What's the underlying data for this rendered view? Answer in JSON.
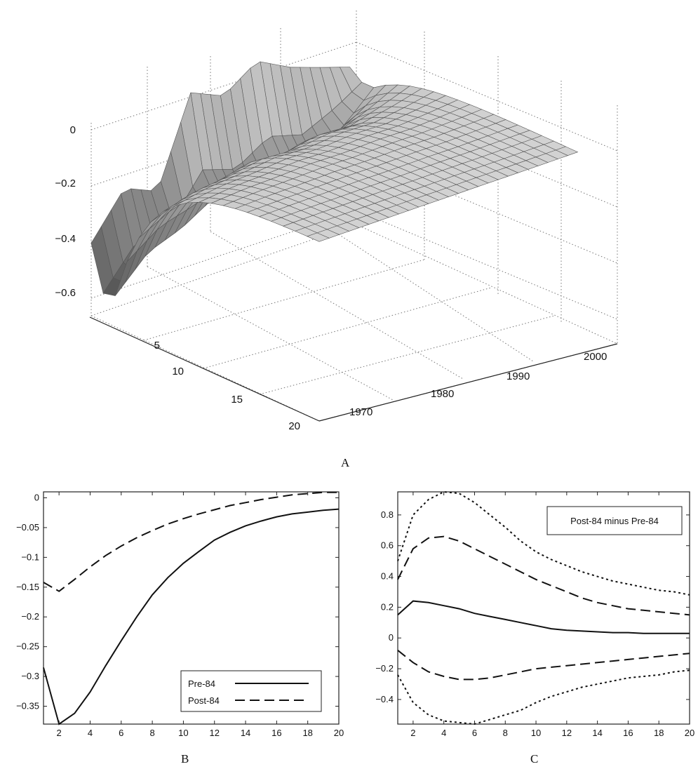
{
  "panels": {
    "a_label": "A",
    "b_label": "B",
    "c_label": "C"
  },
  "chart_data": [
    {
      "panel": "A",
      "type": "surface",
      "z_ticks": [
        "0",
        "−0.2",
        "−0.4",
        "−0.6"
      ],
      "horizon_ticks": [
        "5",
        "10",
        "15",
        "20"
      ],
      "year_ticks": [
        "1970",
        "1980",
        "1990",
        "2000"
      ],
      "zlim": [
        -0.7,
        0.1
      ],
      "horizon_range": [
        1,
        20
      ],
      "year_range": [
        1965,
        2005
      ],
      "grid": true,
      "ridge_profile": {
        "years": [
          1965,
          1970,
          1975,
          1980,
          1985,
          1990,
          1995,
          2000,
          2004
        ],
        "h1_value": [
          -0.45,
          -0.3,
          -0.35,
          -0.05,
          -0.1,
          -0.02,
          -0.08,
          -0.12,
          -0.15
        ],
        "trough_value": [
          -0.68,
          -0.55,
          -0.5,
          -0.42,
          -0.45,
          -0.38,
          -0.4,
          -0.3,
          -0.2
        ]
      },
      "colors": {
        "surface_light": "#d8d8d8",
        "surface_dark": "#3a3a3a",
        "edge": "#555555"
      }
    },
    {
      "panel": "B",
      "type": "line",
      "x": [
        1,
        2,
        3,
        4,
        5,
        6,
        7,
        8,
        9,
        10,
        11,
        12,
        13,
        14,
        15,
        16,
        17,
        18,
        19,
        20
      ],
      "xlim": [
        1,
        20
      ],
      "ylim": [
        -0.38,
        0.01
      ],
      "x_ticks": [
        "2",
        "4",
        "6",
        "8",
        "10",
        "12",
        "14",
        "16",
        "18",
        "20"
      ],
      "y_ticks": [
        "0",
        "−0.05",
        "−0.1",
        "−0.15",
        "−0.2",
        "−0.25",
        "−0.3",
        "−0.35"
      ],
      "y_tick_values": [
        0,
        -0.05,
        -0.1,
        -0.15,
        -0.2,
        -0.25,
        -0.3,
        -0.35
      ],
      "legend_position": "bottom-right",
      "series": [
        {
          "name": "Pre-84",
          "style": "solid",
          "values": [
            -0.285,
            -0.38,
            -0.362,
            -0.326,
            -0.282,
            -0.24,
            -0.2,
            -0.163,
            -0.134,
            -0.11,
            -0.09,
            -0.071,
            -0.058,
            -0.047,
            -0.039,
            -0.032,
            -0.027,
            -0.024,
            -0.021,
            -0.019
          ]
        },
        {
          "name": "Post-84",
          "style": "dashed",
          "values": [
            -0.142,
            -0.157,
            -0.137,
            -0.116,
            -0.097,
            -0.081,
            -0.067,
            -0.055,
            -0.044,
            -0.035,
            -0.027,
            -0.02,
            -0.013,
            -0.008,
            -0.003,
            0.001,
            0.005,
            0.007,
            0.009,
            0.009
          ]
        }
      ]
    },
    {
      "panel": "C",
      "type": "line",
      "x": [
        1,
        2,
        3,
        4,
        5,
        6,
        7,
        8,
        9,
        10,
        11,
        12,
        13,
        14,
        15,
        16,
        17,
        18,
        19,
        20
      ],
      "xlim": [
        1,
        20
      ],
      "ylim": [
        -0.56,
        0.95
      ],
      "x_ticks": [
        "2",
        "4",
        "6",
        "8",
        "10",
        "12",
        "14",
        "16",
        "18",
        "20"
      ],
      "y_ticks": [
        "0.8",
        "0.6",
        "0.4",
        "0.2",
        "0",
        "−0.2",
        "−0.4"
      ],
      "y_tick_values": [
        0.8,
        0.6,
        0.4,
        0.2,
        0,
        -0.2,
        -0.4
      ],
      "legend_position": "top-right",
      "legend_text": "Post-84 minus Pre-84",
      "series": [
        {
          "style": "dotted",
          "values": [
            0.5,
            0.8,
            0.9,
            0.95,
            0.94,
            0.88,
            0.8,
            0.72,
            0.63,
            0.56,
            0.51,
            0.47,
            0.43,
            0.4,
            0.37,
            0.35,
            0.33,
            0.31,
            0.3,
            0.28
          ]
        },
        {
          "style": "dashed",
          "values": [
            0.38,
            0.58,
            0.65,
            0.66,
            0.63,
            0.58,
            0.53,
            0.48,
            0.43,
            0.38,
            0.34,
            0.3,
            0.26,
            0.23,
            0.21,
            0.19,
            0.18,
            0.17,
            0.16,
            0.15
          ]
        },
        {
          "style": "solid",
          "values": [
            0.15,
            0.24,
            0.23,
            0.21,
            0.19,
            0.16,
            0.14,
            0.12,
            0.1,
            0.08,
            0.06,
            0.05,
            0.045,
            0.04,
            0.035,
            0.035,
            0.03,
            0.03,
            0.03,
            0.03
          ]
        },
        {
          "style": "dashed",
          "values": [
            -0.08,
            -0.16,
            -0.22,
            -0.25,
            -0.27,
            -0.27,
            -0.26,
            -0.24,
            -0.22,
            -0.2,
            -0.19,
            -0.18,
            -0.17,
            -0.16,
            -0.15,
            -0.14,
            -0.13,
            -0.12,
            -0.11,
            -0.1
          ]
        },
        {
          "style": "dotted",
          "values": [
            -0.24,
            -0.42,
            -0.5,
            -0.54,
            -0.55,
            -0.56,
            -0.53,
            -0.5,
            -0.47,
            -0.42,
            -0.38,
            -0.35,
            -0.32,
            -0.3,
            -0.28,
            -0.26,
            -0.25,
            -0.24,
            -0.22,
            -0.21
          ]
        }
      ]
    }
  ]
}
